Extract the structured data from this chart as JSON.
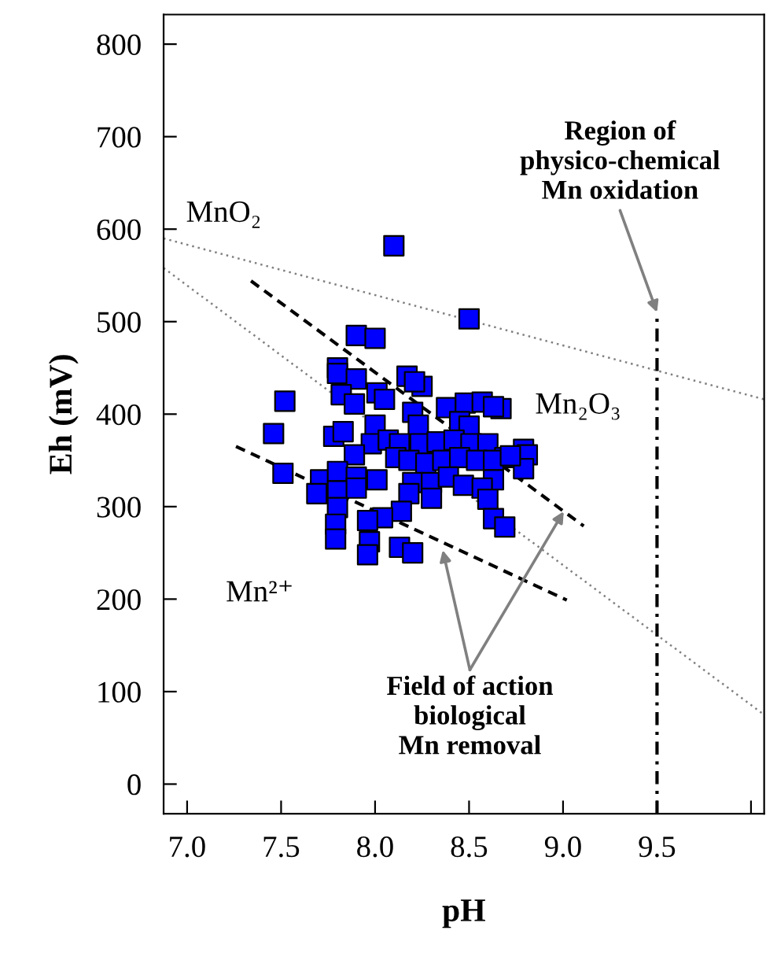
{
  "chart_data": {
    "type": "scatter",
    "xlabel": "pH",
    "ylabel": "Eh (mV)",
    "xlim": [
      6.875,
      10.07
    ],
    "ylim": [
      -32,
      832
    ],
    "xticks": [
      {
        "value": 7.0,
        "label": "7.0"
      },
      {
        "value": 7.5,
        "label": "7.5"
      },
      {
        "value": 8.0,
        "label": "8.0"
      },
      {
        "value": 8.5,
        "label": "8.5"
      },
      {
        "value": 9.0,
        "label": "9.0"
      },
      {
        "value": 9.5,
        "label": "9.5"
      },
      {
        "value": 10.0,
        "label": null
      }
    ],
    "yticks": [
      0,
      100,
      200,
      300,
      400,
      500,
      600,
      700,
      800
    ],
    "grid": false,
    "legend": false,
    "series": [
      {
        "color": "#0000ff",
        "marker": "square",
        "x": [
          8.1,
          8.5,
          7.9,
          8.0,
          7.8,
          7.8,
          7.9,
          8.17,
          8.25,
          8.21,
          7.82,
          8.01,
          8.05,
          7.52,
          7.89,
          8.38,
          8.48,
          8.57,
          8.67,
          8.2,
          8.63,
          8.0,
          8.23,
          8.45,
          8.5,
          7.46,
          7.78,
          7.83,
          7.98,
          8.07,
          8.13,
          8.24,
          8.33,
          8.42,
          8.51,
          8.6,
          8.69,
          8.79,
          8.81,
          8.79,
          7.89,
          8.11,
          8.18,
          8.27,
          8.36,
          8.45,
          8.54,
          8.63,
          8.72,
          7.51,
          7.71,
          7.8,
          7.9,
          8.01,
          8.2,
          8.3,
          8.39,
          8.47,
          8.63,
          8.57,
          7.69,
          7.8,
          7.9,
          8.18,
          8.3,
          8.6,
          7.8,
          8.14,
          8.04,
          7.96,
          8.63,
          8.69,
          7.79,
          7.79,
          7.97,
          7.96,
          8.13,
          8.2
        ],
        "values": [
          582,
          503,
          485,
          482,
          450,
          444,
          438,
          441,
          430,
          435,
          421,
          423,
          416,
          414,
          411,
          407,
          412,
          413,
          406,
          402,
          408,
          388,
          388,
          392,
          387,
          379,
          376,
          381,
          368,
          372,
          368,
          368,
          370,
          372,
          368,
          368,
          353,
          362,
          356,
          341,
          356,
          353,
          350,
          347,
          350,
          353,
          350,
          350,
          355,
          336,
          329,
          338,
          332,
          329,
          326,
          326,
          332,
          323,
          329,
          320,
          314,
          317,
          320,
          314,
          309,
          308,
          299,
          295,
          288,
          285,
          287,
          278,
          281,
          265,
          262,
          248,
          256,
          250
        ]
      },
      {
        "type": "line",
        "color": "#808080",
        "line_style": "dotted",
        "marker": "none",
        "x": [
          6.875,
          10.07
        ],
        "values": [
          590,
          416
        ]
      },
      {
        "type": "line",
        "color": "#808080",
        "line_style": "dotted",
        "marker": "none",
        "x": [
          6.875,
          10.07
        ],
        "values": [
          558,
          75
        ]
      },
      {
        "type": "line",
        "color": "#000000",
        "line_style": "dashed",
        "marker": "none",
        "x": [
          7.34,
          9.11
        ],
        "values": [
          544,
          279
        ]
      },
      {
        "type": "line",
        "color": "#000000",
        "line_style": "dashed",
        "marker": "none",
        "x": [
          7.26,
          9.02
        ],
        "values": [
          365,
          199
        ]
      },
      {
        "type": "line",
        "color": "#000000",
        "line_style": "dashdot",
        "marker": "none",
        "x": [
          9.5,
          9.5
        ],
        "values": [
          -32,
          510
        ]
      }
    ],
    "annotations": [
      "MnO₂",
      "Mn₂O₃",
      "Mn²⁺",
      {
        "text": "Region of\nphysico-chemical\nMn oxidation",
        "x": 9.5,
        "y": 510
      },
      {
        "text": "Field of action\nbiological\nMn removal",
        "x": 8.36,
        "y": 253
      }
    ]
  }
}
